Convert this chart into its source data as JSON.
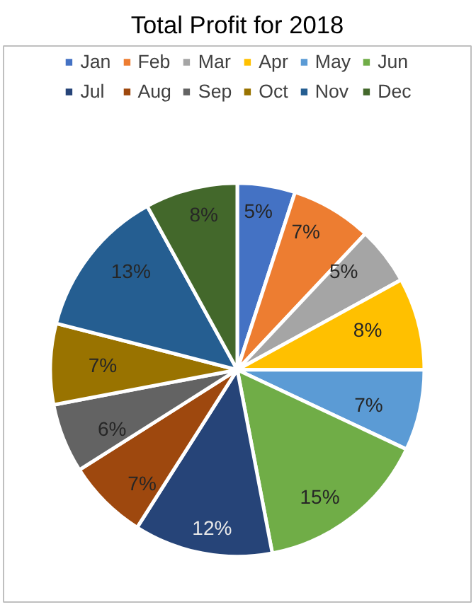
{
  "chart_data": {
    "type": "pie",
    "title": "Total Profit for 2018",
    "categories": [
      "Jan",
      "Feb",
      "Mar",
      "Apr",
      "May",
      "Jun",
      "Jul",
      "Aug",
      "Sep",
      "Oct",
      "Nov",
      "Dec"
    ],
    "values": [
      5,
      7,
      5,
      8,
      7,
      15,
      12,
      7,
      6,
      7,
      13,
      8
    ],
    "colors": [
      "#4472c4",
      "#ed7d31",
      "#a5a5a5",
      "#ffc000",
      "#5b9bd5",
      "#70ad47",
      "#264478",
      "#9e480e",
      "#636363",
      "#997300",
      "#255e91",
      "#43682b"
    ],
    "value_labels": [
      "5%",
      "7%",
      "5%",
      "8%",
      "7%",
      "15%",
      "12%",
      "7%",
      "6%",
      "7%",
      "13%",
      "8%"
    ],
    "legend": "top"
  }
}
